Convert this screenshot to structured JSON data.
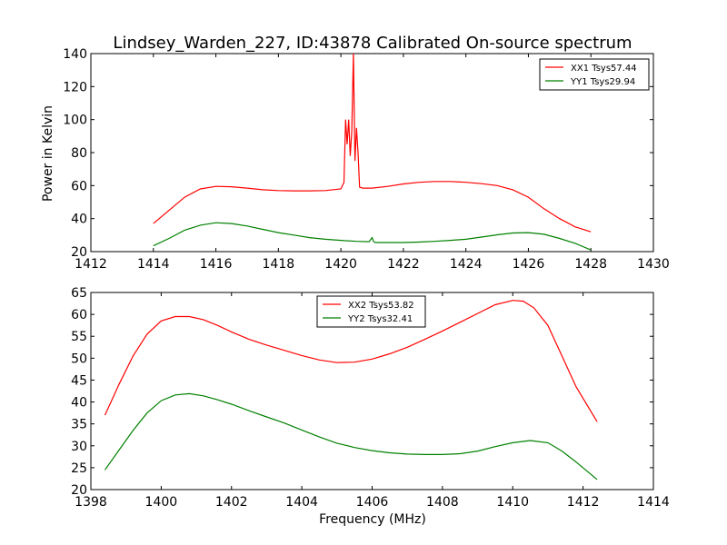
{
  "chart_data": [
    {
      "type": "line",
      "title": "Lindsey_Warden_227, ID:43878 Calibrated On-source spectrum",
      "xlabel": "",
      "ylabel": "Power in Kelvin",
      "xlim": [
        1412,
        1430
      ],
      "ylim": [
        20,
        140
      ],
      "xticks": [
        "1412",
        "1414",
        "1416",
        "1418",
        "1420",
        "1422",
        "1424",
        "1426",
        "1428",
        "1430"
      ],
      "yticks": [
        "20",
        "40",
        "60",
        "80",
        "100",
        "120",
        "140"
      ],
      "legend_position": "top-right",
      "series": [
        {
          "name": "XX1 Tsys57.44",
          "color": "#ff0000",
          "x": [
            1414.0,
            1414.5,
            1415.0,
            1415.5,
            1416.0,
            1416.5,
            1417.0,
            1417.5,
            1418.0,
            1418.5,
            1419.0,
            1419.5,
            1420.0,
            1420.1,
            1420.15,
            1420.2,
            1420.25,
            1420.3,
            1420.35,
            1420.4,
            1420.45,
            1420.5,
            1420.55,
            1420.6,
            1420.7,
            1421.0,
            1421.5,
            1422.0,
            1422.5,
            1423.0,
            1423.5,
            1424.0,
            1424.5,
            1425.0,
            1425.5,
            1426.0,
            1426.5,
            1427.0,
            1427.5,
            1428.0
          ],
          "y": [
            37,
            45,
            53,
            58,
            59.5,
            59.3,
            58.5,
            57.5,
            57,
            56.8,
            56.8,
            57,
            58,
            62,
            100,
            85,
            100,
            78,
            93,
            140,
            75,
            95,
            80,
            59,
            58.5,
            58.5,
            59.5,
            61,
            62,
            62.5,
            62.5,
            62,
            61.2,
            60,
            57.5,
            53,
            46,
            40,
            35,
            32
          ]
        },
        {
          "name": "YY1 Tsys29.94",
          "color": "#008000",
          "x": [
            1414.0,
            1414.5,
            1415.0,
            1415.5,
            1416.0,
            1416.5,
            1417.0,
            1417.5,
            1418.0,
            1418.5,
            1419.0,
            1419.5,
            1420.0,
            1420.5,
            1420.9,
            1421.0,
            1421.05,
            1421.1,
            1421.5,
            1422.0,
            1422.5,
            1423.0,
            1423.5,
            1424.0,
            1424.5,
            1425.0,
            1425.5,
            1426.0,
            1426.5,
            1427.0,
            1427.5,
            1428.0
          ],
          "y": [
            23.5,
            28,
            33,
            36,
            37.5,
            37,
            35.5,
            33.5,
            31.5,
            30,
            28.5,
            27.5,
            26.8,
            26.2,
            26,
            28.5,
            26,
            25.5,
            25.5,
            25.5,
            25.8,
            26.2,
            26.8,
            27.5,
            28.8,
            30.2,
            31.3,
            31.5,
            30.5,
            28,
            25,
            21
          ]
        }
      ]
    },
    {
      "type": "line",
      "title": "",
      "xlabel": "Frequency (MHz)",
      "ylabel": "",
      "xlim": [
        1398,
        1414
      ],
      "ylim": [
        20,
        65
      ],
      "xticks": [
        "1398",
        "1400",
        "1402",
        "1404",
        "1406",
        "1408",
        "1410",
        "1412",
        "1414"
      ],
      "yticks": [
        "20",
        "25",
        "30",
        "35",
        "40",
        "45",
        "50",
        "55",
        "60",
        "65"
      ],
      "legend_position": "top-center",
      "series": [
        {
          "name": "XX2 Tsys53.82",
          "color": "#ff0000",
          "x": [
            1398.4,
            1398.8,
            1399.2,
            1399.6,
            1400.0,
            1400.4,
            1400.8,
            1401.2,
            1401.6,
            1402.0,
            1402.5,
            1403.0,
            1403.5,
            1404.0,
            1404.5,
            1405.0,
            1405.5,
            1406.0,
            1406.5,
            1407.0,
            1407.5,
            1408.0,
            1408.5,
            1409.0,
            1409.5,
            1410.0,
            1410.3,
            1410.6,
            1411.0,
            1411.4,
            1411.8,
            1412.4
          ],
          "y": [
            37,
            44,
            50.5,
            55.5,
            58.5,
            59.5,
            59.5,
            58.8,
            57.5,
            56,
            54.3,
            53,
            51.8,
            50.6,
            49.6,
            49,
            49.1,
            49.8,
            51,
            52.5,
            54.3,
            56.2,
            58.2,
            60.2,
            62.2,
            63.2,
            63,
            61.5,
            57.5,
            50.5,
            43.5,
            35.5
          ]
        },
        {
          "name": "YY2 Tsys32.41",
          "color": "#008000",
          "x": [
            1398.4,
            1398.8,
            1399.2,
            1399.6,
            1400.0,
            1400.4,
            1400.8,
            1401.2,
            1401.6,
            1402.0,
            1402.5,
            1403.0,
            1403.5,
            1404.0,
            1404.5,
            1405.0,
            1405.5,
            1406.0,
            1406.5,
            1407.0,
            1407.5,
            1408.0,
            1408.5,
            1409.0,
            1409.5,
            1410.0,
            1410.5,
            1411.0,
            1411.4,
            1411.8,
            1412.4
          ],
          "y": [
            24.5,
            29,
            33.5,
            37.5,
            40.3,
            41.6,
            41.9,
            41.4,
            40.5,
            39.5,
            38,
            36.6,
            35.2,
            33.6,
            32,
            30.6,
            29.6,
            28.9,
            28.4,
            28.1,
            28,
            28,
            28.2,
            28.8,
            29.8,
            30.7,
            31.2,
            30.7,
            28.8,
            26.3,
            22.3
          ]
        }
      ]
    }
  ]
}
